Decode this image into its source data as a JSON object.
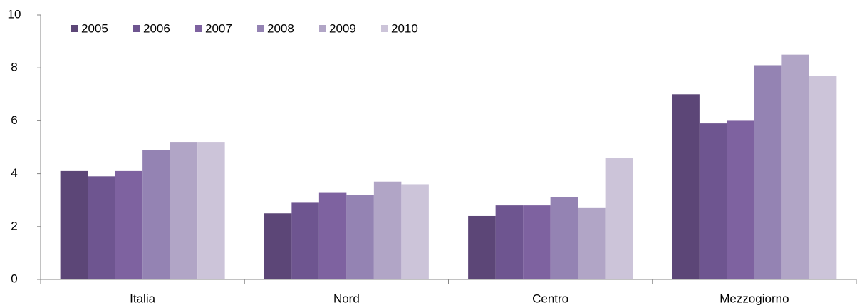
{
  "chart_data": {
    "type": "bar",
    "categories": [
      "Italia",
      "Nord",
      "Centro",
      "Mezzogiorno"
    ],
    "series": [
      {
        "name": "2005",
        "color": "#5c4677",
        "values": [
          4.1,
          2.5,
          2.4,
          7.0
        ]
      },
      {
        "name": "2006",
        "color": "#6e5590",
        "values": [
          3.9,
          2.9,
          2.8,
          5.9
        ]
      },
      {
        "name": "2007",
        "color": "#7e62a0",
        "values": [
          4.1,
          3.3,
          2.8,
          6.0
        ]
      },
      {
        "name": "2008",
        "color": "#9483b3",
        "values": [
          4.9,
          3.2,
          3.1,
          8.1
        ]
      },
      {
        "name": "2009",
        "color": "#b1a5c6",
        "values": [
          5.2,
          3.7,
          2.7,
          8.5
        ]
      },
      {
        "name": "2010",
        "color": "#ccc4d9",
        "values": [
          5.2,
          3.6,
          4.6,
          7.7
        ]
      }
    ],
    "ylim": [
      0,
      10
    ],
    "yticks": [
      0,
      2,
      4,
      6,
      8,
      10
    ],
    "grid": false,
    "legend": "top-left"
  }
}
